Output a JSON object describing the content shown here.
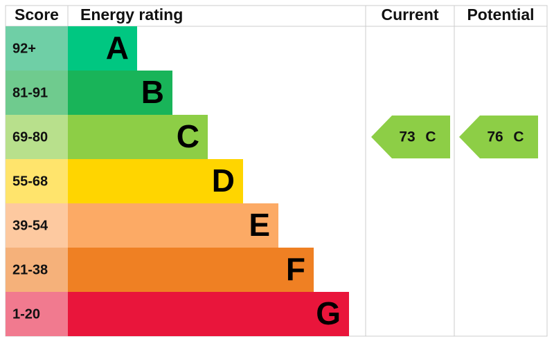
{
  "header": {
    "score": "Score",
    "rating": "Energy rating",
    "current": "Current",
    "potential": "Potential"
  },
  "rows": [
    {
      "score": "92+",
      "band": "A",
      "color": "#00c781",
      "score_color": "#6fcfa6"
    },
    {
      "score": "81-91",
      "band": "B",
      "color": "#19b459",
      "score_color": "#6fcb8e"
    },
    {
      "score": "69-80",
      "band": "C",
      "color": "#8dce46",
      "score_color": "#b8e08c"
    },
    {
      "score": "55-68",
      "band": "D",
      "color": "#ffd500",
      "score_color": "#ffe46c"
    },
    {
      "score": "39-54",
      "band": "E",
      "color": "#fcaa65",
      "score_color": "#fdc9a0"
    },
    {
      "score": "21-38",
      "band": "F",
      "color": "#ef8023",
      "score_color": "#f5b17a"
    },
    {
      "score": "1-20",
      "band": "G",
      "color": "#e9153b",
      "score_color": "#f17a8f"
    }
  ],
  "current": {
    "score": 73,
    "band": "C"
  },
  "potential": {
    "score": 76,
    "band": "C"
  }
}
